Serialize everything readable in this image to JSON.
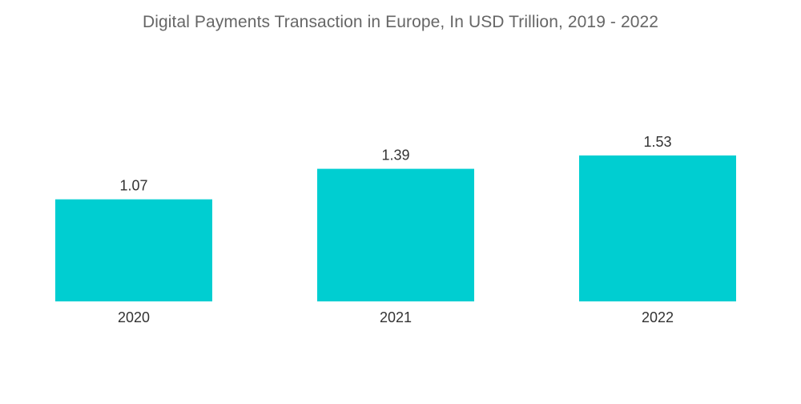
{
  "chart_data": {
    "type": "bar",
    "title": "Digital Payments Transaction in Europe, In USD Trillion, 2019 - 2022",
    "xlabel": "",
    "ylabel": "",
    "categories": [
      "2020",
      "2021",
      "2022"
    ],
    "values": [
      1.07,
      1.39,
      1.53
    ],
    "value_labels": [
      "1.07",
      "1.39",
      "1.53"
    ],
    "ylim": [
      0,
      1.6
    ],
    "grid": false,
    "legend": "none",
    "bar_color": "#00CED1"
  }
}
